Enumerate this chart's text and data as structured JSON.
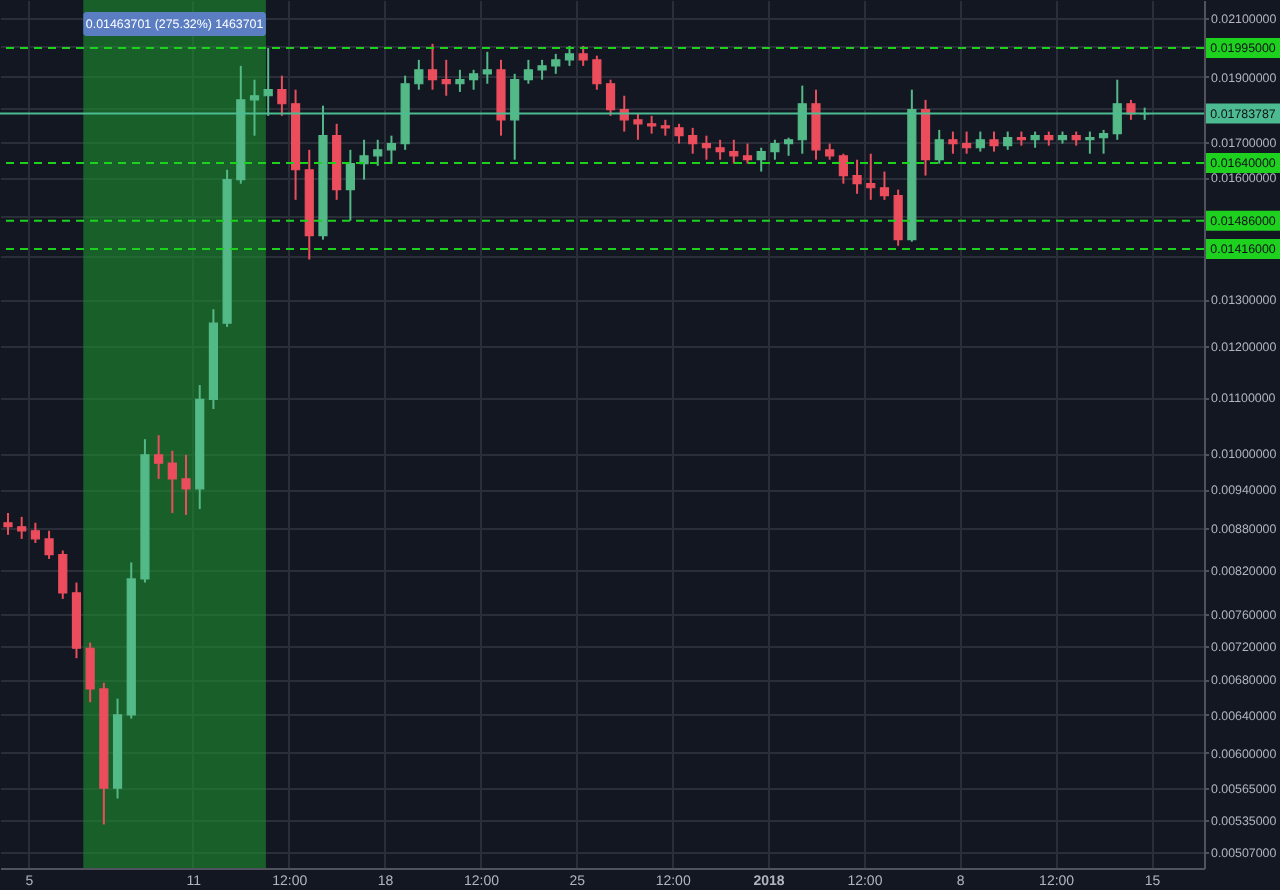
{
  "chart_data": {
    "type": "candlestick",
    "x": [
      "2017-12-04T06:00",
      "2017-12-04T18:00",
      "2017-12-05T06:00",
      "2017-12-05T18:00",
      "2017-12-06T06:00",
      "2017-12-06T18:00",
      "2017-12-07T06:00",
      "2017-12-07T18:00",
      "2017-12-08T06:00",
      "2017-12-08T18:00",
      "2017-12-09T06:00",
      "2017-12-09T18:00",
      "2017-12-10T06:00",
      "2017-12-10T18:00",
      "2017-12-11T06:00",
      "2017-12-11T18:00",
      "2017-12-12T06:00",
      "2017-12-12T18:00",
      "2017-12-13T06:00",
      "2017-12-13T18:00",
      "2017-12-14T06:00",
      "2017-12-14T18:00",
      "2017-12-15T06:00",
      "2017-12-15T18:00",
      "2017-12-16T06:00",
      "2017-12-16T18:00",
      "2017-12-17T06:00",
      "2017-12-17T18:00",
      "2017-12-18T06:00",
      "2017-12-18T18:00",
      "2017-12-19T06:00",
      "2017-12-19T18:00",
      "2017-12-20T06:00",
      "2017-12-20T18:00",
      "2017-12-21T06:00",
      "2017-12-21T18:00",
      "2017-12-22T06:00",
      "2017-12-22T18:00",
      "2017-12-23T06:00",
      "2017-12-23T18:00",
      "2017-12-24T06:00",
      "2017-12-24T18:00",
      "2017-12-25T06:00",
      "2017-12-25T18:00",
      "2017-12-26T06:00",
      "2017-12-26T18:00",
      "2017-12-27T06:00",
      "2017-12-27T18:00",
      "2017-12-28T06:00",
      "2017-12-28T18:00",
      "2017-12-29T06:00",
      "2017-12-29T18:00",
      "2017-12-30T06:00",
      "2017-12-30T18:00",
      "2017-12-31T06:00",
      "2017-12-31T18:00",
      "2018-01-01T06:00",
      "2018-01-01T18:00",
      "2018-01-02T06:00",
      "2018-01-02T18:00",
      "2018-01-03T06:00",
      "2018-01-03T18:00",
      "2018-01-04T06:00",
      "2018-01-04T18:00",
      "2018-01-05T06:00",
      "2018-01-05T18:00",
      "2018-01-06T06:00",
      "2018-01-06T18:00",
      "2018-01-07T06:00",
      "2018-01-07T18:00",
      "2018-01-08T06:00",
      "2018-01-08T18:00",
      "2018-01-09T06:00",
      "2018-01-09T18:00",
      "2018-01-10T06:00",
      "2018-01-10T18:00",
      "2018-01-11T06:00",
      "2018-01-11T18:00",
      "2018-01-12T06:00",
      "2018-01-12T18:00",
      "2018-01-13T06:00",
      "2018-01-13T18:00",
      "2018-01-14T06:00",
      "2018-01-14T18:00"
    ],
    "ohlc": [
      [
        0.00888,
        0.00903,
        0.0087,
        0.00882
      ],
      [
        0.00882,
        0.00897,
        0.00864,
        0.00876
      ],
      [
        0.00876,
        0.00888,
        0.00858,
        0.00864
      ],
      [
        0.00864,
        0.00876,
        0.00835,
        0.00841
      ],
      [
        0.00841,
        0.00847,
        0.0078,
        0.00788
      ],
      [
        0.00788,
        0.00802,
        0.00705,
        0.00717
      ],
      [
        0.00717,
        0.00724,
        0.00654,
        0.00669
      ],
      [
        0.00669,
        0.00676,
        0.00531,
        0.00565
      ],
      [
        0.00565,
        0.00658,
        0.00555,
        0.0064
      ],
      [
        0.0064,
        0.0083,
        0.00636,
        0.00807
      ],
      [
        0.00807,
        0.01024,
        0.00802,
        0.00997
      ],
      [
        0.00997,
        0.01031,
        0.00957,
        0.00983
      ],
      [
        0.00983,
        0.01004,
        0.00903,
        0.00957
      ],
      [
        0.00957,
        0.00997,
        0.009,
        0.00941
      ],
      [
        0.00941,
        0.01123,
        0.00909,
        0.01096
      ],
      [
        0.01096,
        0.01278,
        0.01078,
        0.01248
      ],
      [
        0.01248,
        0.01621,
        0.0124,
        0.01594
      ],
      [
        0.01594,
        0.01935,
        0.01583,
        0.01826
      ],
      [
        0.01826,
        0.0189,
        0.01718,
        0.01839
      ],
      [
        0.01839,
        0.01995,
        0.01777,
        0.01858
      ],
      [
        0.01858,
        0.01903,
        0.01777,
        0.01814
      ],
      [
        0.01814,
        0.01858,
        0.0154,
        0.01621
      ],
      [
        0.01621,
        0.01677,
        0.01391,
        0.01449
      ],
      [
        0.01449,
        0.01808,
        0.01439,
        0.01718
      ],
      [
        0.01718,
        0.01753,
        0.0154,
        0.01567
      ],
      [
        0.01567,
        0.01677,
        0.01486,
        0.01638
      ],
      [
        0.01638,
        0.01706,
        0.01594,
        0.0166
      ],
      [
        0.0166,
        0.01706,
        0.01632,
        0.01677
      ],
      [
        0.01677,
        0.01718,
        0.01638,
        0.01695
      ],
      [
        0.01695,
        0.01903,
        0.01677,
        0.01877
      ],
      [
        0.01877,
        0.01955,
        0.01858,
        0.01922
      ],
      [
        0.01922,
        0.02009,
        0.01858,
        0.0189
      ],
      [
        0.0189,
        0.01955,
        0.01839,
        0.01877
      ],
      [
        0.01877,
        0.01922,
        0.01851,
        0.0189
      ],
      [
        0.0189,
        0.01922,
        0.01858,
        0.01909
      ],
      [
        0.01909,
        0.01982,
        0.01877,
        0.01922
      ],
      [
        0.01922,
        0.01955,
        0.01718,
        0.01765
      ],
      [
        0.01765,
        0.01909,
        0.01649,
        0.0189
      ],
      [
        0.0189,
        0.01955,
        0.01877,
        0.01922
      ],
      [
        0.01922,
        0.01955,
        0.0189,
        0.01935
      ],
      [
        0.01935,
        0.01975,
        0.01909,
        0.01955
      ],
      [
        0.01955,
        0.02002,
        0.01935,
        0.01975
      ],
      [
        0.01975,
        0.02002,
        0.01935,
        0.01955
      ],
      [
        0.01955,
        0.01969,
        0.01858,
        0.01877
      ],
      [
        0.01877,
        0.0189,
        0.01777,
        0.01796
      ],
      [
        0.01796,
        0.01839,
        0.0173,
        0.01765
      ],
      [
        0.01765,
        0.01783,
        0.01706,
        0.01753
      ],
      [
        0.01753,
        0.01777,
        0.01724,
        0.01747
      ],
      [
        0.01747,
        0.01765,
        0.01718,
        0.01741
      ],
      [
        0.01741,
        0.01753,
        0.01695,
        0.01718
      ],
      [
        0.01718,
        0.01741,
        0.01666,
        0.01695
      ],
      [
        0.01695,
        0.01718,
        0.01649,
        0.01683
      ],
      [
        0.01683,
        0.01706,
        0.01649,
        0.01672
      ],
      [
        0.01672,
        0.01706,
        0.01638,
        0.0166
      ],
      [
        0.0166,
        0.01695,
        0.01638,
        0.01649
      ],
      [
        0.01649,
        0.01683,
        0.01616,
        0.01672
      ],
      [
        0.01672,
        0.01706,
        0.01649,
        0.01695
      ],
      [
        0.01695,
        0.01712,
        0.0166,
        0.01706
      ],
      [
        0.01706,
        0.01871,
        0.01666,
        0.01814
      ],
      [
        0.01814,
        0.01858,
        0.01649,
        0.01677
      ],
      [
        0.01677,
        0.01695,
        0.01649,
        0.0166
      ],
      [
        0.0166,
        0.01666,
        0.01583,
        0.01605
      ],
      [
        0.01605,
        0.01649,
        0.01556,
        0.01583
      ],
      [
        0.01583,
        0.01666,
        0.0154,
        0.01572
      ],
      [
        0.01572,
        0.01616,
        0.0154,
        0.01551
      ],
      [
        0.01551,
        0.01567,
        0.01424,
        0.01439
      ],
      [
        0.01439,
        0.01858,
        0.01434,
        0.01796
      ],
      [
        0.01796,
        0.01826,
        0.01605,
        0.01649
      ],
      [
        0.01649,
        0.01735,
        0.01638,
        0.01706
      ],
      [
        0.01706,
        0.0173,
        0.01666,
        0.01695
      ],
      [
        0.01695,
        0.0173,
        0.01666,
        0.01683
      ],
      [
        0.01683,
        0.0173,
        0.01672,
        0.01706
      ],
      [
        0.01706,
        0.0173,
        0.01672,
        0.01689
      ],
      [
        0.01689,
        0.0173,
        0.01677,
        0.01712
      ],
      [
        0.01712,
        0.0173,
        0.01689,
        0.01706
      ],
      [
        0.01706,
        0.0173,
        0.01683,
        0.01718
      ],
      [
        0.01718,
        0.0173,
        0.01689,
        0.01706
      ],
      [
        0.01706,
        0.0173,
        0.01695,
        0.01718
      ],
      [
        0.01718,
        0.0173,
        0.01689,
        0.01706
      ],
      [
        0.01706,
        0.0173,
        0.01666,
        0.01712
      ],
      [
        0.01712,
        0.01735,
        0.01666,
        0.01724
      ],
      [
        0.01724,
        0.0189,
        0.01706,
        0.01814
      ],
      [
        0.01814,
        0.01826,
        0.01765,
        0.01783
      ],
      [
        0.01783,
        0.01802,
        0.01765,
        0.01784
      ]
    ],
    "colors": [
      "#eb4d5c",
      "#eb4d5c",
      "#eb4d5c",
      "#eb4d5c",
      "#eb4d5c",
      "#eb4d5c",
      "#eb4d5c",
      "#eb4d5c",
      "#53b987",
      "#53b987",
      "#53b987",
      "#eb4d5c",
      "#eb4d5c",
      "#eb4d5c",
      "#53b987",
      "#53b987",
      "#53b987",
      "#53b987",
      "#53b987",
      "#53b987",
      "#eb4d5c",
      "#eb4d5c",
      "#eb4d5c",
      "#53b987",
      "#eb4d5c",
      "#53b987",
      "#53b987",
      "#53b987",
      "#53b987",
      "#53b987",
      "#53b987",
      "#eb4d5c",
      "#eb4d5c",
      "#53b987",
      "#53b987",
      "#53b987",
      "#eb4d5c",
      "#53b987",
      "#53b987",
      "#53b987",
      "#53b987",
      "#53b987",
      "#eb4d5c",
      "#eb4d5c",
      "#eb4d5c",
      "#eb4d5c",
      "#eb4d5c",
      "#eb4d5c",
      "#eb4d5c",
      "#eb4d5c",
      "#eb4d5c",
      "#eb4d5c",
      "#eb4d5c",
      "#eb4d5c",
      "#eb4d5c",
      "#53b987",
      "#53b987",
      "#53b987",
      "#53b987",
      "#eb4d5c",
      "#eb4d5c",
      "#eb4d5c",
      "#eb4d5c",
      "#eb4d5c",
      "#eb4d5c",
      "#eb4d5c",
      "#53b987",
      "#eb4d5c",
      "#53b987",
      "#eb4d5c",
      "#eb4d5c",
      "#53b987",
      "#eb4d5c",
      "#53b987",
      "#eb4d5c",
      "#53b987",
      "#eb4d5c",
      "#53b987",
      "#eb4d5c",
      "#53b987",
      "#53b987",
      "#53b987",
      "#eb4d5c",
      "#53b987"
    ],
    "xlim": [
      "2017-12-03T23:00",
      "2018-01-16T22:00"
    ],
    "xticks": [
      {
        "value": "2017-12-05",
        "label": "5"
      },
      {
        "value": "2017-12-11",
        "label": "11"
      },
      {
        "value": "2017-12-14T12:00",
        "label": "12:00"
      },
      {
        "value": "2017-12-18",
        "label": "18"
      },
      {
        "value": "2017-12-21T12:00",
        "label": "12:00"
      },
      {
        "value": "2017-12-25",
        "label": "25"
      },
      {
        "value": "2017-12-28T12:00",
        "label": "12:00"
      },
      {
        "value": "2018-01-01",
        "label": "2018"
      },
      {
        "value": "2018-01-04T12:00",
        "label": "12:00"
      },
      {
        "value": "2018-01-08",
        "label": "8"
      },
      {
        "value": "2018-01-11T12:00",
        "label": "12:00"
      },
      {
        "value": "2018-01-15",
        "label": "15"
      }
    ],
    "ylim": [
      0.00493,
      0.02165
    ],
    "yticks": [
      {
        "value": 0.021,
        "label": "0.02100000"
      },
      {
        "value": 0.02,
        "label": null
      },
      {
        "value": 0.019,
        "label": "0.01900000"
      },
      {
        "value": 0.018,
        "label": null
      },
      {
        "value": 0.017,
        "label": "0.01700000"
      },
      {
        "value": 0.016,
        "label": "0.01600000"
      },
      {
        "value": 0.015,
        "label": null
      },
      {
        "value": 0.014,
        "label": null
      },
      {
        "value": 0.013,
        "label": "0.01300000"
      },
      {
        "value": 0.012,
        "label": "0.01200000"
      },
      {
        "value": 0.011,
        "label": "0.01100000"
      },
      {
        "value": 0.01,
        "label": "0.01000000"
      },
      {
        "value": 0.0094,
        "label": "0.00940000"
      },
      {
        "value": 0.0088,
        "label": "0.00880000"
      },
      {
        "value": 0.0082,
        "label": "0.00820000"
      },
      {
        "value": 0.0076,
        "label": "0.00760000"
      },
      {
        "value": 0.0072,
        "label": "0.00720000"
      },
      {
        "value": 0.0068,
        "label": "0.00680000"
      },
      {
        "value": 0.0064,
        "label": "0.00640000"
      },
      {
        "value": 0.006,
        "label": "0.00600000"
      },
      {
        "value": 0.00565,
        "label": "0.00565000"
      },
      {
        "value": 0.00535,
        "label": "0.00535000"
      },
      {
        "value": 0.00507,
        "label": "0.00507000"
      }
    ],
    "log": true,
    "grid": true,
    "bands": [
      {
        "axis": "x",
        "from": "2017-12-07",
        "to": "2017-12-13T16:00",
        "label": "0.01463701 (275.32%) 1463701",
        "color": "#1e8f2e"
      }
    ],
    "ref_lines": [
      {
        "axis": "y",
        "value": 0.01995,
        "label": "0.01995000",
        "color": "#1fd11f",
        "line_style": "dashed"
      },
      {
        "axis": "y",
        "value": 0.01783787,
        "label": "0.01783787",
        "color": "#4dbb92",
        "line_style": "solid"
      },
      {
        "axis": "y",
        "value": 0.0164,
        "label": "0.01640000",
        "color": "#1fd11f",
        "line_style": "dashed"
      },
      {
        "axis": "y",
        "value": 0.01486,
        "label": "0.01486000",
        "color": "#1fd11f",
        "line_style": "dashed"
      },
      {
        "axis": "y",
        "value": 0.01416,
        "label": "0.01416000",
        "color": "#1fd11f",
        "line_style": "dashed"
      }
    ]
  }
}
